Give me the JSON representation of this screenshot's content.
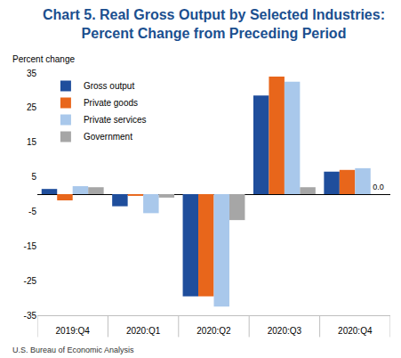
{
  "chart_data": {
    "type": "bar",
    "title": "Chart 5. Real Gross Output by Selected Industries:\nPercent Change from Preceding Period",
    "ylabel": "Percent change",
    "annotations": [
      {
        "text": "U.S. Bureau of Economic Analysis"
      }
    ],
    "categories": [
      "2019:Q4",
      "2020:Q1",
      "2020:Q2",
      "2020:Q3",
      "2020:Q4"
    ],
    "series": [
      {
        "name": "Gross output",
        "color": "#1f4e9c",
        "values": [
          1.5,
          -3.5,
          -29.5,
          28.5,
          6.5
        ]
      },
      {
        "name": "Private goods",
        "color": "#e8661b",
        "values": [
          -1.8,
          -0.5,
          -29.5,
          34,
          7
        ]
      },
      {
        "name": "Private services",
        "color": "#a9c8eb",
        "values": [
          2.3,
          -5.5,
          -32.5,
          32.5,
          7.5
        ]
      },
      {
        "name": "Government",
        "color": "#a6a6a6",
        "values": [
          2,
          -1,
          -7.5,
          2,
          0
        ],
        "value_labels": [
          null,
          null,
          null,
          null,
          "0.0"
        ]
      }
    ],
    "ylim": [
      -35,
      35
    ],
    "yticks": [
      -35,
      -25,
      -15,
      -5,
      5,
      15,
      25,
      35
    ],
    "grid": false,
    "legend": "upper left"
  }
}
